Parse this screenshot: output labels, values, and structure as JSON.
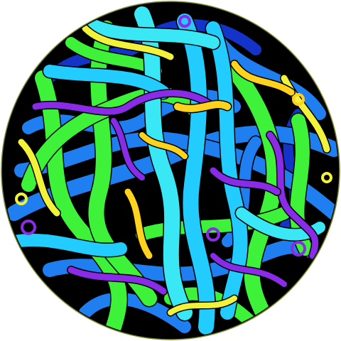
{
  "artwork": {
    "subject": "celtic-knot-sphere",
    "background_color": "#ffffff",
    "disc_color": "#000000",
    "rim_color": "#7a8a2a",
    "palette": {
      "light_blue": "#22ccff",
      "cyan": "#3ae8f5",
      "blue": "#1f7ff0",
      "green": "#3ef23a",
      "purple": "#8a2be8",
      "yellow": "#f2f23a",
      "gold": "#ffd21e",
      "dark_blue": "#1433c8"
    }
  }
}
